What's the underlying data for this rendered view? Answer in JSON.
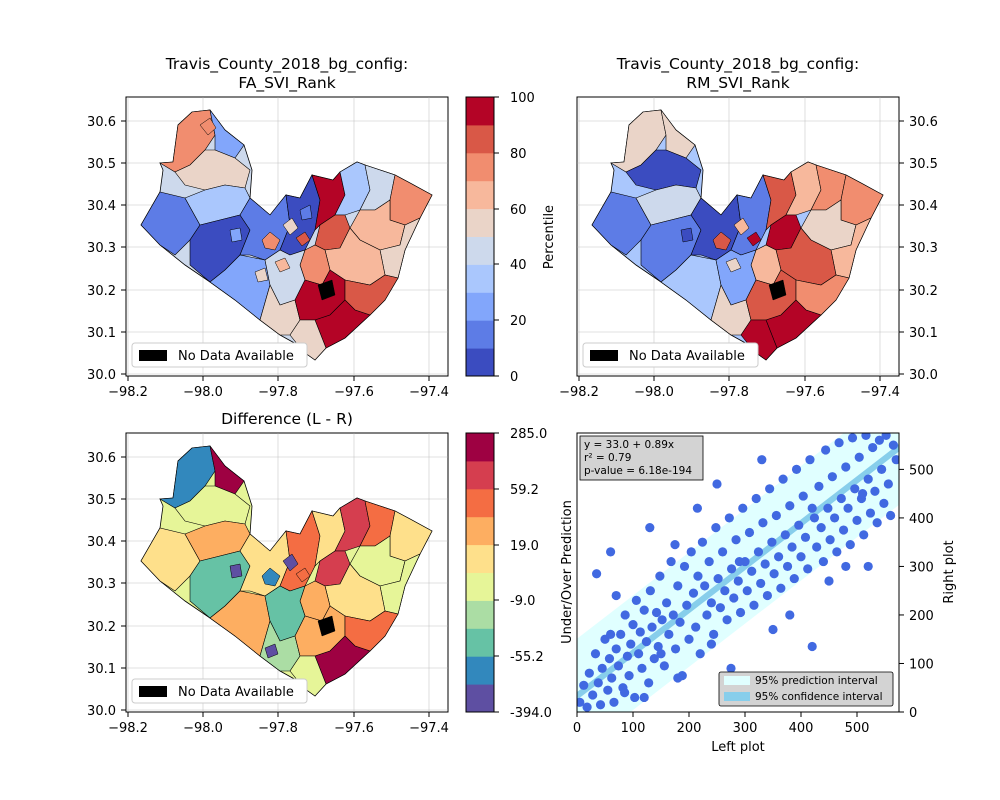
{
  "colors": {
    "ranks": [
      "#3b4cc0",
      "#5d7ce6",
      "#82a6fb",
      "#aac7fd",
      "#cdd9ec",
      "#ead4c8",
      "#f7b89c",
      "#f18d6f",
      "#d95847",
      "#b40426"
    ],
    "diff": [
      "#5e4fa2",
      "#3288bd",
      "#66c2a5",
      "#abdda4",
      "#e6f598",
      "#fee08b",
      "#fdae61",
      "#f46d43",
      "#d53e4f",
      "#9e0142"
    ],
    "scatter_points": "#4169e1",
    "prediction_band": "#e0ffff",
    "confidence_band": "#87ceeb",
    "no_data": "#000000"
  },
  "maps": {
    "left_title": [
      "Travis_County_2018_bg_config:",
      "FA_SVI_Rank"
    ],
    "right_title": [
      "Travis_County_2018_bg_config:",
      "RM_SVI_Rank"
    ],
    "diff_title": "Difference (L - R)",
    "legend_label": "No Data Available",
    "x_ticks": [
      "−98.2",
      "−98.0",
      "−97.8",
      "−97.6",
      "−97.4"
    ],
    "y_ticks": [
      "30.0",
      "30.1",
      "30.2",
      "30.3",
      "30.4",
      "30.5",
      "30.6"
    ]
  },
  "colorbar_rank": {
    "label": "Percentile",
    "ticks": [
      "0",
      "20",
      "40",
      "60",
      "80",
      "100"
    ]
  },
  "colorbar_diff": {
    "ticks": [
      "-394.0",
      "-55.2",
      "-9.0",
      "19.0",
      "59.2",
      "285.0"
    ]
  },
  "chart_data": {
    "type": "scatter",
    "xlabel": "Left plot",
    "ylabel_left": "Under/Over Prediction",
    "ylabel_right": "Right plot",
    "xlim": [
      0,
      575
    ],
    "ylim": [
      0,
      575
    ],
    "x_ticks": [
      "0",
      "100",
      "200",
      "300",
      "400",
      "500"
    ],
    "y_ticks": [
      "0",
      "100",
      "200",
      "300",
      "400",
      "500"
    ],
    "regression": {
      "intercept": 33.0,
      "slope": 0.89
    },
    "stats_lines": [
      "y = 33.0 + 0.89x",
      "r² = 0.79",
      "p-value = 6.18e-194"
    ],
    "prediction_halfwidth": 118,
    "confidence_halfwidth": 8,
    "legend": [
      "95% prediction interval",
      "95% confidence interval"
    ],
    "points": [
      [
        5,
        20
      ],
      [
        12,
        55
      ],
      [
        18,
        10
      ],
      [
        22,
        80
      ],
      [
        28,
        35
      ],
      [
        33,
        120
      ],
      [
        38,
        60
      ],
      [
        42,
        15
      ],
      [
        45,
        90
      ],
      [
        50,
        150
      ],
      [
        55,
        45
      ],
      [
        58,
        110
      ],
      [
        62,
        70
      ],
      [
        66,
        20
      ],
      [
        70,
        130
      ],
      [
        74,
        95
      ],
      [
        78,
        160
      ],
      [
        82,
        50
      ],
      [
        86,
        200
      ],
      [
        90,
        115
      ],
      [
        93,
        75
      ],
      [
        96,
        140
      ],
      [
        100,
        180
      ],
      [
        103,
        30
      ],
      [
        106,
        230
      ],
      [
        110,
        120
      ],
      [
        113,
        165
      ],
      [
        116,
        90
      ],
      [
        120,
        210
      ],
      [
        124,
        145
      ],
      [
        128,
        60
      ],
      [
        131,
        250
      ],
      [
        134,
        175
      ],
      [
        138,
        110
      ],
      [
        142,
        205
      ],
      [
        145,
        135
      ],
      [
        148,
        280
      ],
      [
        152,
        190
      ],
      [
        156,
        95
      ],
      [
        160,
        225
      ],
      [
        164,
        160
      ],
      [
        168,
        310
      ],
      [
        172,
        200
      ],
      [
        176,
        130
      ],
      [
        180,
        260
      ],
      [
        184,
        185
      ],
      [
        188,
        75
      ],
      [
        192,
        300
      ],
      [
        196,
        220
      ],
      [
        200,
        150
      ],
      [
        204,
        330
      ],
      [
        208,
        245
      ],
      [
        212,
        175
      ],
      [
        216,
        280
      ],
      [
        220,
        120
      ],
      [
        224,
        350
      ],
      [
        228,
        260
      ],
      [
        232,
        200
      ],
      [
        236,
        310
      ],
      [
        240,
        225
      ],
      [
        244,
        160
      ],
      [
        248,
        380
      ],
      [
        252,
        275
      ],
      [
        256,
        215
      ],
      [
        260,
        330
      ],
      [
        264,
        250
      ],
      [
        268,
        190
      ],
      [
        272,
        400
      ],
      [
        276,
        295
      ],
      [
        280,
        235
      ],
      [
        284,
        355
      ],
      [
        288,
        270
      ],
      [
        292,
        205
      ],
      [
        296,
        420
      ],
      [
        300,
        310
      ],
      [
        304,
        250
      ],
      [
        308,
        370
      ],
      [
        312,
        290
      ],
      [
        316,
        220
      ],
      [
        320,
        440
      ],
      [
        324,
        330
      ],
      [
        328,
        265
      ],
      [
        332,
        390
      ],
      [
        336,
        305
      ],
      [
        340,
        240
      ],
      [
        344,
        460
      ],
      [
        348,
        350
      ],
      [
        352,
        285
      ],
      [
        356,
        405
      ],
      [
        360,
        320
      ],
      [
        364,
        255
      ],
      [
        368,
        480
      ],
      [
        372,
        365
      ],
      [
        376,
        300
      ],
      [
        380,
        425
      ],
      [
        384,
        340
      ],
      [
        388,
        275
      ],
      [
        392,
        500
      ],
      [
        396,
        385
      ],
      [
        400,
        320
      ],
      [
        404,
        445
      ],
      [
        408,
        360
      ],
      [
        412,
        295
      ],
      [
        416,
        520
      ],
      [
        420,
        135
      ],
      [
        424,
        400
      ],
      [
        428,
        340
      ],
      [
        432,
        465
      ],
      [
        436,
        380
      ],
      [
        440,
        310
      ],
      [
        444,
        540
      ],
      [
        448,
        420
      ],
      [
        452,
        355
      ],
      [
        456,
        485
      ],
      [
        460,
        400
      ],
      [
        464,
        330
      ],
      [
        468,
        555
      ],
      [
        472,
        440
      ],
      [
        476,
        375
      ],
      [
        480,
        505
      ],
      [
        484,
        420
      ],
      [
        488,
        345
      ],
      [
        492,
        565
      ],
      [
        496,
        460
      ],
      [
        500,
        395
      ],
      [
        504,
        525
      ],
      [
        508,
        440
      ],
      [
        512,
        365
      ],
      [
        516,
        570
      ],
      [
        520,
        480
      ],
      [
        524,
        410
      ],
      [
        528,
        545
      ],
      [
        532,
        455
      ],
      [
        536,
        390
      ],
      [
        540,
        560
      ],
      [
        544,
        500
      ],
      [
        548,
        430
      ],
      [
        552,
        570
      ],
      [
        556,
        470
      ],
      [
        560,
        405
      ],
      [
        565,
        550
      ],
      [
        570,
        520
      ],
      [
        95,
        490
      ],
      [
        35,
        285
      ],
      [
        250,
        470
      ],
      [
        130,
        380
      ],
      [
        85,
        40
      ],
      [
        150,
        120
      ],
      [
        240,
        140
      ],
      [
        290,
        310
      ],
      [
        350,
        170
      ],
      [
        420,
        420
      ],
      [
        380,
        200
      ],
      [
        480,
        300
      ],
      [
        510,
        450
      ],
      [
        60,
        330
      ],
      [
        175,
        345
      ],
      [
        215,
        420
      ],
      [
        330,
        520
      ],
      [
        450,
        270
      ],
      [
        520,
        300
      ],
      [
        60,
        160
      ],
      [
        275,
        90
      ],
      [
        180,
        70
      ],
      [
        120,
        30
      ],
      [
        70,
        240
      ]
    ]
  }
}
